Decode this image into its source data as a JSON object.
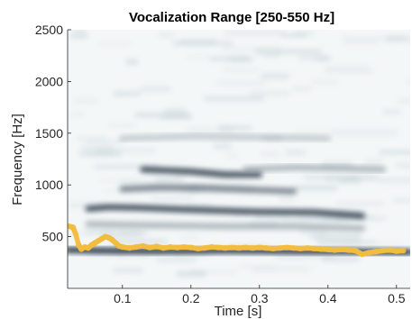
{
  "chart_data": {
    "type": "heatmap",
    "title": "Vocalization Range [250-550 Hz]",
    "xlabel": "Time [s]",
    "ylabel": "Frequency [Hz]",
    "xlim": [
      0.02,
      0.52
    ],
    "ylim": [
      0,
      2500
    ],
    "xticks": [
      0.1,
      0.2,
      0.3,
      0.4,
      0.5
    ],
    "yticks": [
      500,
      1000,
      1500,
      2000,
      2500
    ],
    "grid": false,
    "colors": {
      "background": "#f4f7f7",
      "band_dark": "#141c2c",
      "band_light": "#b8c6cf",
      "pitch_track": "#f2bd40"
    },
    "harmonic_bands": [
      {
        "t": [
          0.02,
          0.07,
          0.15,
          0.25,
          0.35,
          0.45,
          0.52
        ],
        "f": [
          370,
          365,
          360,
          365,
          360,
          355,
          350
        ],
        "strength": 0.95
      },
      {
        "t": [
          0.05,
          0.08,
          0.12,
          0.2,
          0.3,
          0.38,
          0.45
        ],
        "f": [
          770,
          785,
          780,
          760,
          740,
          735,
          700
        ],
        "strength": 0.8
      },
      {
        "t": [
          0.1,
          0.15,
          0.22,
          0.3,
          0.35
        ],
        "f": [
          960,
          975,
          970,
          950,
          940
        ],
        "strength": 0.5
      },
      {
        "t": [
          0.13,
          0.2,
          0.25,
          0.3
        ],
        "f": [
          1150,
          1130,
          1100,
          1100
        ],
        "strength": 0.8
      },
      {
        "t": [
          0.28,
          0.35,
          0.42,
          0.48
        ],
        "f": [
          1150,
          1170,
          1160,
          1150
        ],
        "strength": 0.25
      },
      {
        "t": [
          0.1,
          0.2,
          0.3,
          0.4
        ],
        "f": [
          1450,
          1470,
          1460,
          1450
        ],
        "strength": 0.15
      },
      {
        "t": [
          0.05,
          0.15,
          0.25,
          0.35,
          0.45
        ],
        "f": [
          620,
          610,
          600,
          600,
          580
        ],
        "strength": 0.25
      }
    ],
    "series": [
      {
        "type": "scatter",
        "x": [
          0.022,
          0.028,
          0.032,
          0.036,
          0.04,
          0.045,
          0.05,
          0.055,
          0.06,
          0.065,
          0.07,
          0.075,
          0.08,
          0.085,
          0.09,
          0.095,
          0.1,
          0.11,
          0.12,
          0.13,
          0.14,
          0.15,
          0.16,
          0.17,
          0.18,
          0.19,
          0.2,
          0.21,
          0.22,
          0.23,
          0.24,
          0.25,
          0.26,
          0.27,
          0.28,
          0.29,
          0.3,
          0.31,
          0.32,
          0.33,
          0.34,
          0.35,
          0.36,
          0.37,
          0.38,
          0.39,
          0.4,
          0.41,
          0.42,
          0.43,
          0.44,
          0.45,
          0.46,
          0.47,
          0.48,
          0.49,
          0.5,
          0.51
        ],
        "y": [
          600,
          590,
          520,
          420,
          380,
          400,
          390,
          420,
          440,
          460,
          480,
          500,
          490,
          470,
          440,
          410,
          400,
          390,
          400,
          410,
          395,
          405,
          390,
          400,
          395,
          400,
          395,
          385,
          390,
          400,
          395,
          390,
          395,
          390,
          395,
          390,
          395,
          390,
          385,
          390,
          395,
          390,
          385,
          390,
          385,
          380,
          375,
          370,
          375,
          370,
          365,
          330,
          345,
          355,
          365,
          370,
          360,
          365
        ]
      }
    ]
  }
}
